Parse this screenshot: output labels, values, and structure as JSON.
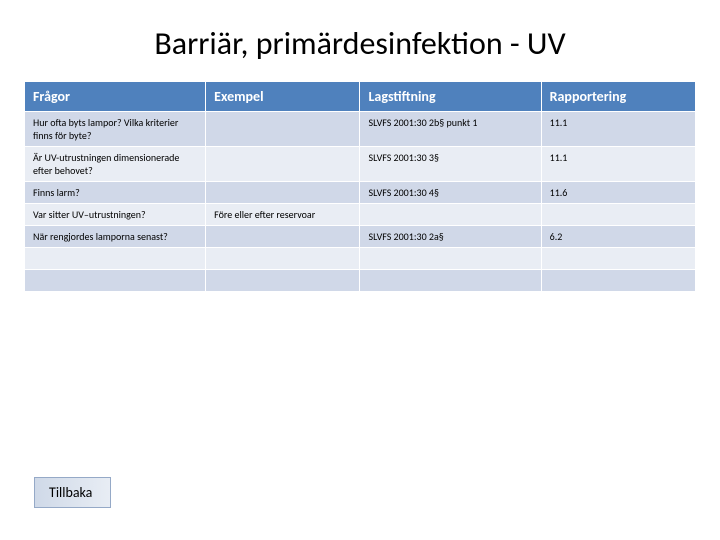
{
  "title": "Barriär, primärdesinfektion - UV",
  "colors": {
    "header_bg": "#4f81bd",
    "header_text": "#ffffff",
    "row_band_a": "#d0d8e8",
    "row_band_b": "#e9edf4",
    "border": "#ffffff",
    "back_btn_border": "#95a9c7",
    "back_btn_grad_from": "#cfd9e8",
    "back_btn_grad_to": "#e8edf4"
  },
  "columns": [
    {
      "key": "fragor",
      "label": "Frågor"
    },
    {
      "key": "exempel",
      "label": "Exempel"
    },
    {
      "key": "lagstiftning",
      "label": "Lagstiftning"
    },
    {
      "key": "rapportering",
      "label": "Rapportering"
    }
  ],
  "rows": [
    {
      "fragor": "Hur ofta byts lampor? Vilka kriterier finns för byte?",
      "exempel": "",
      "lagstiftning": "SLVFS 2001:30 2b§ punkt 1",
      "rapportering": "11.1",
      "band": "a"
    },
    {
      "fragor": "Är UV-utrustningen dimensionerade efter behovet?",
      "exempel": "",
      "lagstiftning": "SLVFS 2001:30 3§",
      "rapportering": "11.1",
      "band": "b"
    },
    {
      "fragor": "Finns larm?",
      "exempel": "",
      "lagstiftning": "SLVFS 2001:30 4§",
      "rapportering": "11.6",
      "band": "a"
    },
    {
      "fragor": "Var sitter UV–utrustningen?",
      "exempel": "Före eller efter reservoar",
      "lagstiftning": "",
      "rapportering": "",
      "band": "b"
    },
    {
      "fragor": "När rengjordes lamporna senast?",
      "exempel": "",
      "lagstiftning": "SLVFS 2001:30 2a§",
      "rapportering": "6.2",
      "band": "a"
    },
    {
      "fragor": "",
      "exempel": "",
      "lagstiftning": "",
      "rapportering": "",
      "band": "b"
    },
    {
      "fragor": "",
      "exempel": "",
      "lagstiftning": "",
      "rapportering": "",
      "band": "a"
    }
  ],
  "back_label": "Tillbaka",
  "fonts": {
    "title_size": 32,
    "header_size": 14,
    "cell_size": 10,
    "back_size": 14
  }
}
